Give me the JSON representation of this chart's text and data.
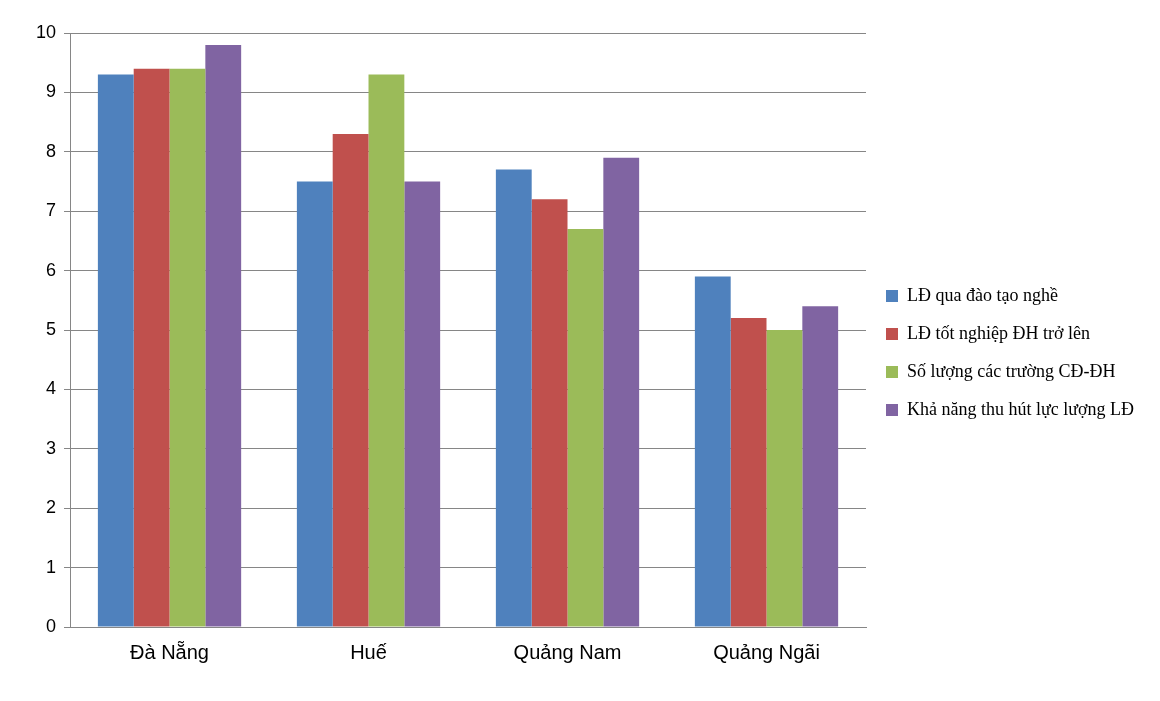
{
  "chart_data": {
    "type": "bar",
    "categories": [
      "Đà Nẵng",
      "Huế",
      "Quảng Nam",
      "Quảng Ngãi"
    ],
    "series": [
      {
        "name": "LĐ qua đào tạo nghề",
        "color": "#4f81bd",
        "values": [
          9.3,
          7.5,
          7.7,
          5.9
        ]
      },
      {
        "name": "LĐ tốt nghiệp ĐH trở lên",
        "color": "#c0504d",
        "values": [
          9.4,
          8.3,
          7.2,
          5.2
        ]
      },
      {
        "name": "Số lượng các trường CĐ-ĐH",
        "color": "#9bbb59",
        "values": [
          9.4,
          9.3,
          6.7,
          5.0
        ]
      },
      {
        "name": "Khả năng thu hút lực lượng LĐ",
        "color": "#8064a2",
        "values": [
          9.8,
          7.5,
          7.9,
          5.4
        ]
      }
    ],
    "ylim": [
      0,
      10
    ],
    "yticks": [
      0,
      1,
      2,
      3,
      4,
      5,
      6,
      7,
      8,
      9,
      10
    ],
    "grid": "y",
    "legend": "right"
  }
}
